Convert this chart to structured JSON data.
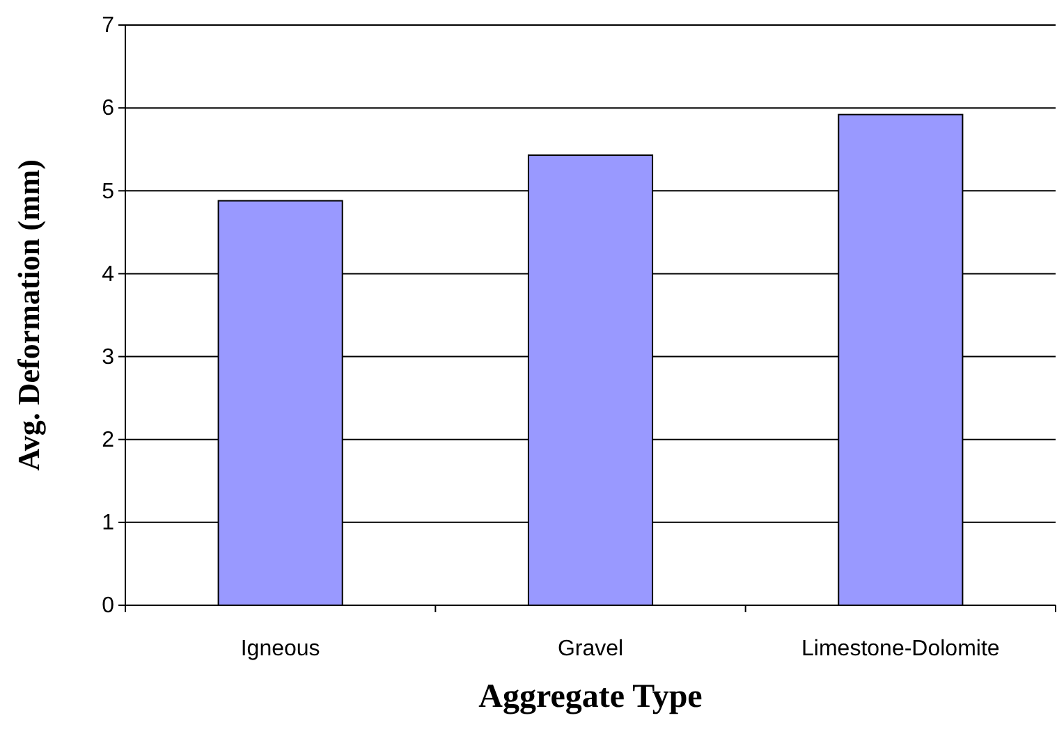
{
  "chart_data": {
    "type": "bar",
    "xlabel": "Aggregate Type",
    "ylabel": "Avg. Deformation (mm)",
    "categories": [
      "Igneous",
      "Gravel",
      "Limestone-Dolomite"
    ],
    "values": [
      4.88,
      5.43,
      5.92
    ],
    "color": "#9999ff",
    "ylim": [
      0,
      7
    ],
    "yticks": [
      0,
      1,
      2,
      3,
      4,
      5,
      6,
      7
    ],
    "grid": "y"
  }
}
